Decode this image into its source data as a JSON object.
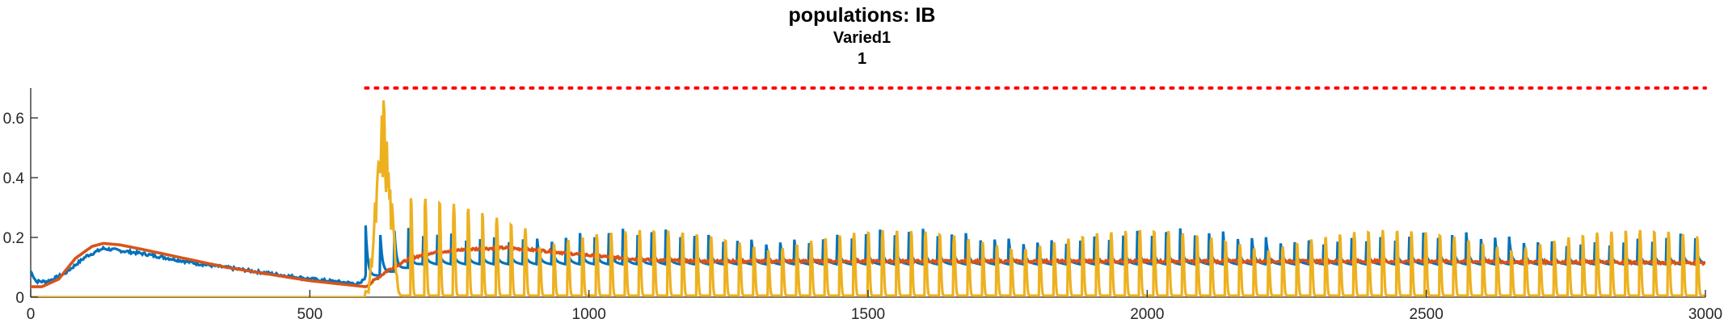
{
  "chart_data": {
    "type": "line",
    "title": "populations: IB",
    "subtitle": "Varied1",
    "subtitle2": "1",
    "xlabel": "",
    "ylabel": "",
    "xlim": [
      0,
      3000
    ],
    "ylim": [
      0,
      0.7
    ],
    "x_ticks": [
      0,
      500,
      1000,
      1500,
      2000,
      2500,
      3000
    ],
    "y_ticks": [
      0,
      0.2,
      0.4,
      0.6
    ],
    "x_tick_labels": [
      "0",
      "500",
      "1000",
      "1500",
      "2000",
      "2500",
      "3000"
    ],
    "y_tick_labels": [
      "0",
      "0.2",
      "0.4",
      "0.6"
    ],
    "grid": false,
    "legend": "none",
    "series": [
      {
        "color": "#0072BD",
        "style": "solid",
        "description_points": {
          "x": [
            0,
            10,
            30,
            60,
            100,
            130,
            200,
            300,
            400,
            500,
            590,
            620,
            640,
            700,
            800,
            900,
            1000,
            1500,
            2000,
            2500,
            3000
          ],
          "y": [
            0.09,
            0.05,
            0.05,
            0.08,
            0.15,
            0.18,
            0.16,
            0.12,
            0.09,
            0.06,
            0.04,
            0.13,
            0.1,
            0.14,
            0.19,
            0.17,
            0.16,
            0.15,
            0.15,
            0.15,
            0.13
          ]
        },
        "spike_baseline": 0.12,
        "spike_peak": 0.21,
        "spike_period": 25.6
      },
      {
        "color": "#D95319",
        "style": "solid",
        "x": [
          0,
          20,
          50,
          80,
          110,
          130,
          160,
          200,
          250,
          300,
          350,
          400,
          450,
          500,
          550,
          600,
          640,
          680,
          720,
          780,
          850,
          920,
          1000,
          1100,
          1200,
          1500,
          2000,
          2500,
          3000
        ],
        "y": [
          0.035,
          0.035,
          0.06,
          0.13,
          0.17,
          0.18,
          0.175,
          0.16,
          0.14,
          0.12,
          0.1,
          0.085,
          0.07,
          0.055,
          0.045,
          0.035,
          0.09,
          0.13,
          0.15,
          0.16,
          0.165,
          0.155,
          0.14,
          0.125,
          0.12,
          0.12,
          0.12,
          0.12,
          0.115
        ]
      },
      {
        "color": "#EDB120",
        "style": "solid",
        "x": [
          0,
          598,
          600,
          610,
          620,
          630,
          640,
          650,
          660
        ],
        "y": [
          0,
          0,
          0.02,
          0.3,
          0.56,
          0.7,
          0.62,
          0.2,
          0.05
        ],
        "spike_base": 0.005,
        "spike_peak": 0.2,
        "spike_period": 25.6,
        "spike_start": 680
      },
      {
        "color": "#FF0000",
        "style": "dotted",
        "x": [
          600,
          3000
        ],
        "y": [
          0.7,
          0.7
        ]
      }
    ]
  }
}
